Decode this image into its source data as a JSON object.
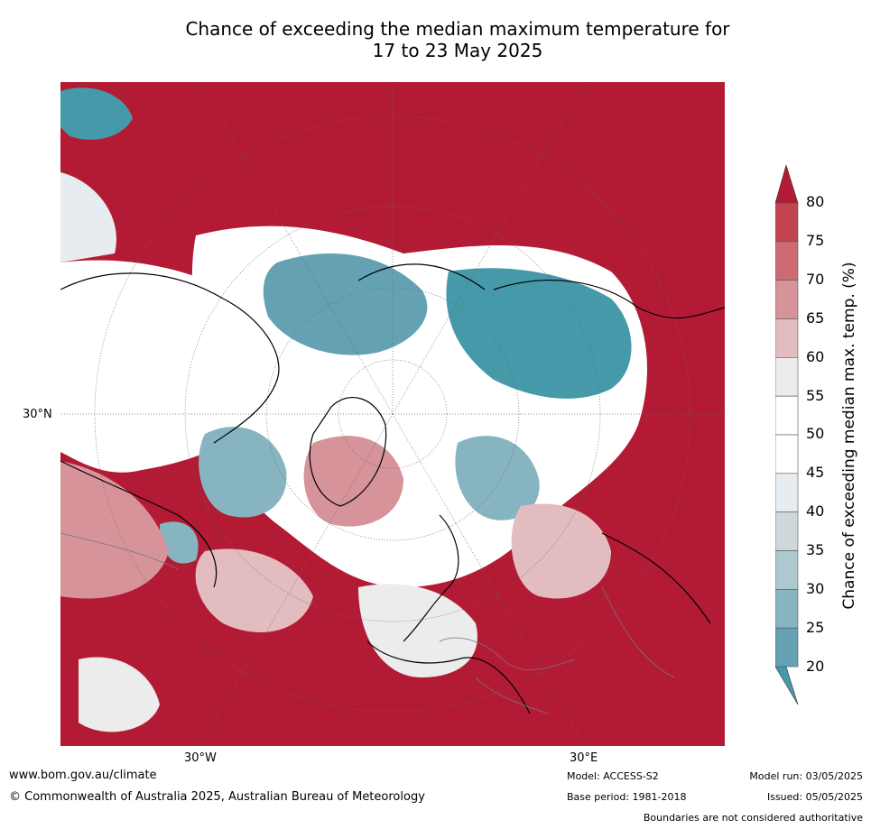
{
  "title": {
    "line1": "Chance of exceeding the median maximum temperature for",
    "line2": "17 to 23 May 2025"
  },
  "map": {
    "lat_label": "30°N",
    "lon_labels": [
      "30°W",
      "30°E"
    ],
    "colors": {
      "p80plus": "#b31b35",
      "p75_80": "#c1444f",
      "p70_75": "#cc6b73",
      "p65_70": "#d69399",
      "p60_65": "#e3bcc0",
      "p55_60": "#ececec",
      "p45_55": "#ffffff",
      "p40_45": "#e6ecef",
      "p35_40": "#cfd7da",
      "p30_35": "#adc9cf",
      "p25_30": "#86b4c0",
      "p20_25": "#64a2b3",
      "p_below20": "#4599a8"
    }
  },
  "colorbar": {
    "label": "Chance of exceeding median max. temp. (%)",
    "ticks": [
      "80",
      "75",
      "70",
      "65",
      "60",
      "55",
      "50",
      "45",
      "40",
      "35",
      "30",
      "25",
      "20"
    ],
    "segment_colors": [
      "#c1444f",
      "#cc6b73",
      "#d69399",
      "#e3bcc0",
      "#ececec",
      "#ffffff",
      "#ffffff",
      "#e6ecef",
      "#cfd7da",
      "#adc9cf",
      "#86b4c0",
      "#64a2b3"
    ],
    "top_arrow_color": "#b31b35",
    "bottom_arrow_color": "#4599a8"
  },
  "footer": {
    "website": "www.bom.gov.au/climate",
    "copyright": "© Commonwealth of Australia 2025, Australian Bureau of Meteorology",
    "model": "Model: ACCESS-S2",
    "base_period": "Base period: 1981-2018",
    "model_run": "Model run: 03/05/2025",
    "issued": "Issued: 05/05/2025",
    "disclaimer": "Boundaries are not considered authoritative"
  }
}
